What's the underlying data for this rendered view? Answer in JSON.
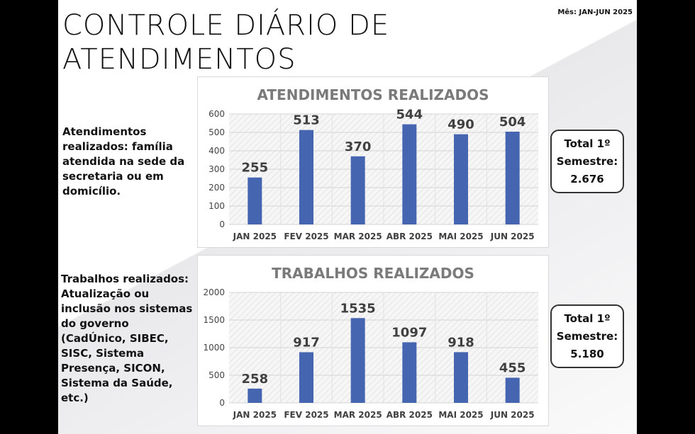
{
  "title_line1": "CONTROLE  DIÁRIO  DE",
  "title_line2": "ATENDIMENTOS",
  "month": "Mês: JAN-JUN 2025",
  "desc1": "Atendimentos realizados: família atendida na sede da secretaria ou em domicílio.",
  "desc2": "Trabalhos realizados: Atualização ou inclusão nos sistemas do governo (CadÚnico, SIBEC, SISC, Sistema Presença, SICON, Sistema da Saúde, etc.)",
  "total1": {
    "line1": "Total 1º",
    "line2": "Semestre:",
    "value": "2.676"
  },
  "total2": {
    "line1": "Total 1º",
    "line2": "Semestre:",
    "value": "5.180"
  },
  "bar_color": "#4665b0",
  "chart_data": [
    {
      "type": "bar",
      "title": "ATENDIMENTOS REALIZADOS",
      "categories": [
        "JAN 2025",
        "FEV 2025",
        "MAR 2025",
        "ABR 2025",
        "MAI 2025",
        "JUN 2025"
      ],
      "values": [
        255,
        513,
        370,
        544,
        490,
        504
      ],
      "ylim": [
        0,
        600
      ],
      "yticks": [
        0,
        100,
        200,
        300,
        400,
        500,
        600
      ],
      "grid": true
    },
    {
      "type": "bar",
      "title": "TRABALHOS REALIZADOS",
      "categories": [
        "JAN 2025",
        "FEV 2025",
        "MAR 2025",
        "ABR 2025",
        "MAI 2025",
        "JUN 2025"
      ],
      "values": [
        258,
        917,
        1535,
        1097,
        918,
        455
      ],
      "ylim": [
        0,
        2000
      ],
      "yticks": [
        0,
        500,
        1000,
        1500,
        2000
      ],
      "grid": true
    }
  ]
}
